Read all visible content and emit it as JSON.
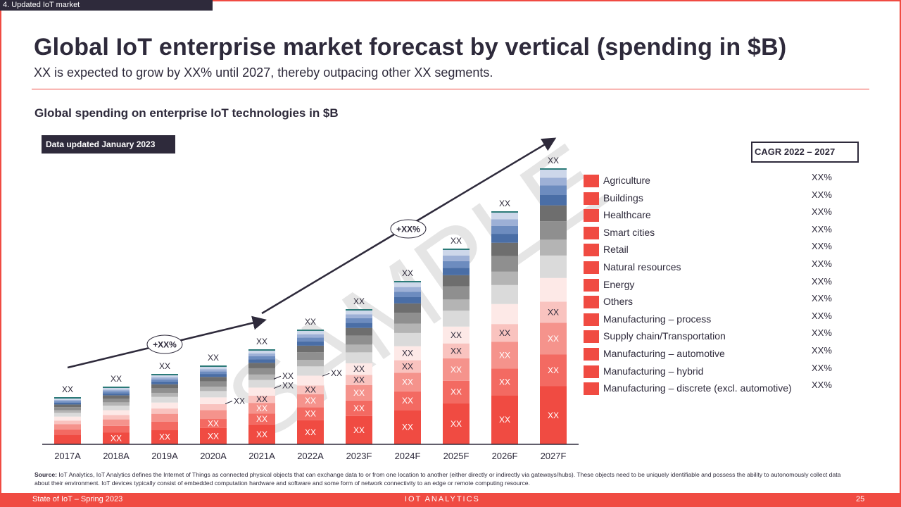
{
  "section_tag": "4. Updated IoT market",
  "title": "Global IoT enterprise market forecast by vertical (spending in $B)",
  "subtitle": "XX is expected to grow by XX% until 2027, thereby outpacing other XX  segments.",
  "chart_heading": "Global spending on enterprise IoT technologies in $B",
  "data_badge": "Data updated January 2023",
  "watermark": "SAMPLE",
  "cagr_header": "CAGR 2022 – 2027",
  "growth_labels": [
    "+XX%",
    "+XX%"
  ],
  "legend": [
    {
      "label": "Agriculture",
      "cagr": "XX%"
    },
    {
      "label": "Buildings",
      "cagr": "XX%"
    },
    {
      "label": "Healthcare",
      "cagr": "XX%"
    },
    {
      "label": "Smart cities",
      "cagr": "XX%"
    },
    {
      "label": "Retail",
      "cagr": "XX%"
    },
    {
      "label": "Natural resources",
      "cagr": "XX%"
    },
    {
      "label": "Energy",
      "cagr": "XX%"
    },
    {
      "label": "Others",
      "cagr": "XX%"
    },
    {
      "label": "Manufacturing – process",
      "cagr": "XX%"
    },
    {
      "label": "Supply chain/Transportation",
      "cagr": "XX%"
    },
    {
      "label": "Manufacturing – automotive",
      "cagr": "XX%"
    },
    {
      "label": "Manufacturing – hybrid",
      "cagr": "XX%"
    },
    {
      "label": "Manufacturing – discrete (excl. automotive)",
      "cagr": "XX%"
    }
  ],
  "colors": {
    "accent": "#f04b42",
    "dark": "#2e2a3b",
    "teal": "#2b7a78",
    "segments": [
      "#f04b42",
      "#f36a62",
      "#f5938c",
      "#f9c3bf",
      "#fde9e7",
      "#dadada",
      "#b4b4b4",
      "#8f8f8f",
      "#6e6e6e",
      "#4a6ea6",
      "#6d8cbf",
      "#9db0d6",
      "#cdd7ea"
    ]
  },
  "chart_data": {
    "type": "stacked_bar",
    "categories": [
      "2017A",
      "2018A",
      "2019A",
      "2020A",
      "2021A",
      "2022A",
      "2023F",
      "2024F",
      "2025F",
      "2026F",
      "2027F"
    ],
    "totals": [
      65,
      80,
      98,
      110,
      133,
      161,
      190,
      230,
      276,
      329,
      390
    ],
    "total_labels": [
      "XX",
      "XX",
      "XX",
      "XX",
      "XX",
      "XX",
      "XX",
      "XX",
      "XX",
      "XX",
      "XX"
    ],
    "segment_labels": "XX",
    "segment_labels_shown": [
      0,
      1,
      1,
      2,
      4,
      4,
      5,
      5,
      5,
      4,
      4
    ],
    "legend_position": "right",
    "grid": false
  },
  "source": {
    "label": "Source:",
    "text": "IoT Analytics, IoT Analytics defines the Internet of Things as connected physical objects that can exchange data to or from one location to another (either directly or indirectly via gateways/hubs). These objects need to be uniquely identifiable and possess the ability to autonomously collect data about their environment. IoT devices typically consist of embedded computation hardware and software and some form of network connectivity to an edge or remote computing resource."
  },
  "footer": {
    "left": "State of IoT – Spring 2023",
    "logo": "IOT ANALYTICS",
    "page": "25"
  }
}
